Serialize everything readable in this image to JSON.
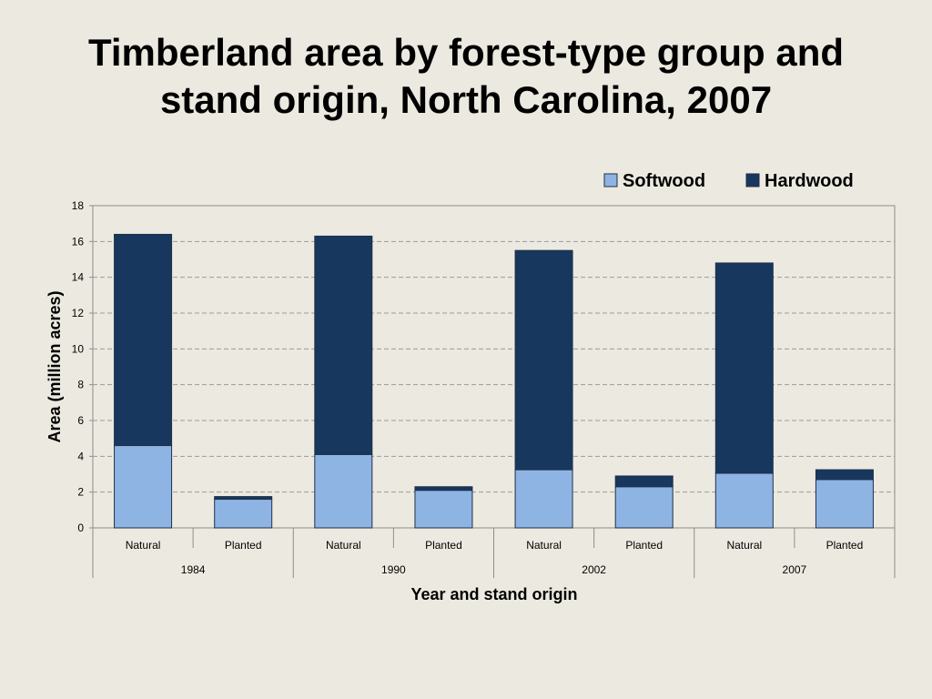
{
  "slide": {
    "title_line1": "Timberland area by forest-type group and",
    "title_line2": "stand origin, North Carolina, 2007"
  },
  "colors": {
    "background": "#ECEAE0",
    "softwood": "#8EB4E3",
    "hardwood": "#17375E"
  },
  "chart_data": {
    "type": "bar",
    "stacked": true,
    "title": "Timberland area by forest-type group and stand origin, North Carolina, 2007",
    "xlabel": "Year and stand origin",
    "ylabel": "Area (million acres)",
    "ylim": [
      0,
      18
    ],
    "yticks": [
      0,
      2,
      4,
      6,
      8,
      10,
      12,
      14,
      16,
      18
    ],
    "grid": true,
    "legend_position": "top-right",
    "categories": [
      "Natural",
      "Planted",
      "Natural",
      "Planted",
      "Natural",
      "Planted",
      "Natural",
      "Planted"
    ],
    "groups": [
      {
        "label": "1984",
        "categories": [
          "Natural",
          "Planted"
        ]
      },
      {
        "label": "1990",
        "categories": [
          "Natural",
          "Planted"
        ]
      },
      {
        "label": "2002",
        "categories": [
          "Natural",
          "Planted"
        ]
      },
      {
        "label": "2007",
        "categories": [
          "Natural",
          "Planted"
        ]
      }
    ],
    "series": [
      {
        "name": "Softwood",
        "color": "#8EB4E3",
        "values": [
          4.6,
          1.6,
          4.1,
          2.1,
          3.25,
          2.3,
          3.05,
          2.7
        ]
      },
      {
        "name": "Hardwood",
        "color": "#17375E",
        "values": [
          11.8,
          0.15,
          12.2,
          0.2,
          12.25,
          0.6,
          11.75,
          0.55
        ]
      }
    ]
  }
}
